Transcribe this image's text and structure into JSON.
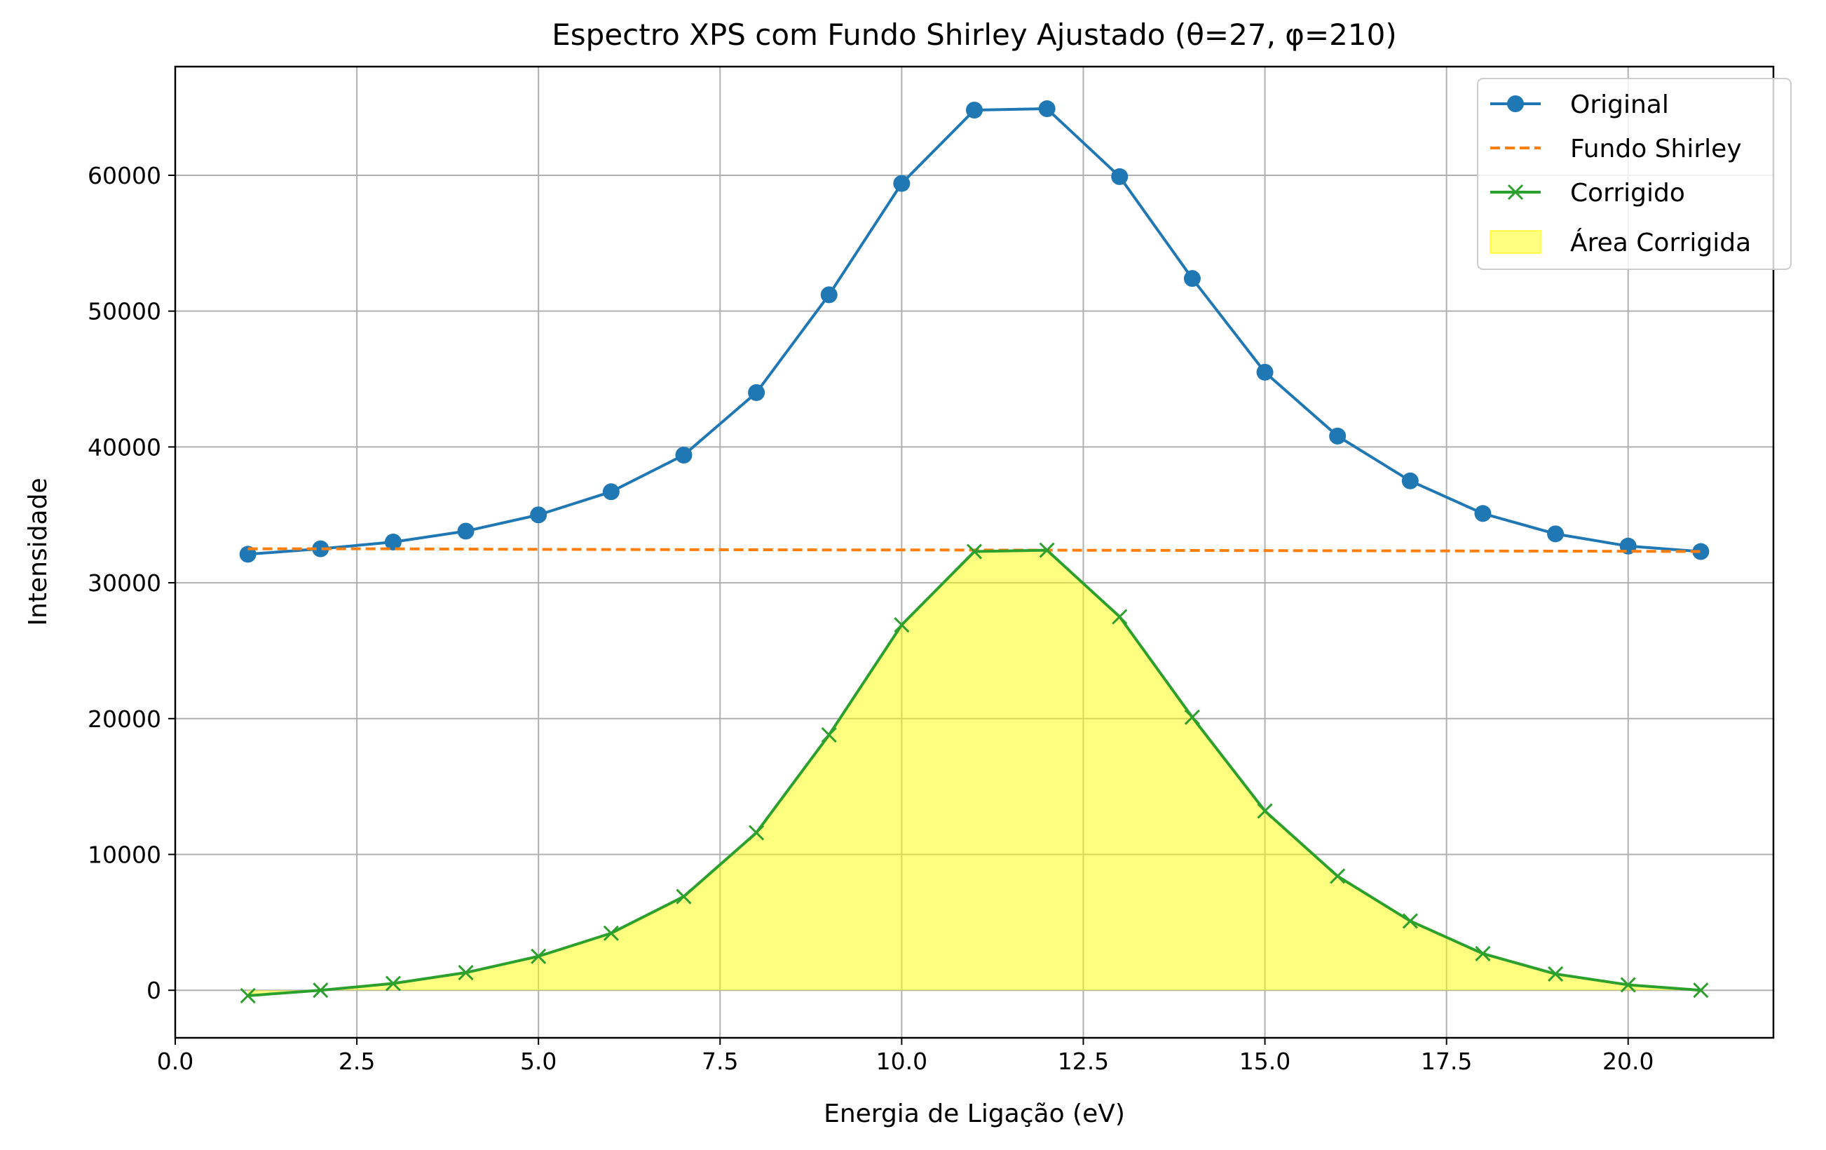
{
  "chart_data": {
    "type": "line",
    "title": "Espectro XPS com Fundo Shirley Ajustado (θ=27, φ=210)",
    "xlabel": "Energia de Ligação (eV)",
    "ylabel": "Intensidade",
    "xlim": [
      0,
      22
    ],
    "ylim": [
      -3500,
      68000
    ],
    "x_ticks": [
      0.0,
      2.5,
      5.0,
      7.5,
      10.0,
      12.5,
      15.0,
      17.5,
      20.0
    ],
    "x_tick_labels": [
      "0.0",
      "2.5",
      "5.0",
      "7.5",
      "10.0",
      "12.5",
      "15.0",
      "17.5",
      "20.0"
    ],
    "y_ticks": [
      0,
      10000,
      20000,
      30000,
      40000,
      50000,
      60000
    ],
    "y_tick_labels": [
      "0",
      "10000",
      "20000",
      "30000",
      "40000",
      "50000",
      "60000"
    ],
    "grid": true,
    "legend_position": "top-right",
    "x": [
      1,
      2,
      3,
      4,
      5,
      6,
      7,
      8,
      9,
      10,
      11,
      12,
      13,
      14,
      15,
      16,
      17,
      18,
      19,
      20,
      21
    ],
    "series": [
      {
        "name": "Original",
        "style": "line-circle",
        "color": "#1f77b4",
        "values": [
          32100,
          32500,
          33000,
          33800,
          35000,
          36700,
          39400,
          44000,
          51200,
          59400,
          64800,
          64900,
          59900,
          52400,
          45500,
          40800,
          37500,
          35100,
          33600,
          32700,
          32300
        ]
      },
      {
        "name": "Fundo Shirley",
        "style": "dashed",
        "color": "#ff7f0e",
        "values": [
          32500,
          32500,
          32500,
          32480,
          32460,
          32450,
          32440,
          32430,
          32420,
          32420,
          32410,
          32400,
          32390,
          32380,
          32370,
          32360,
          32350,
          32340,
          32330,
          32320,
          32300
        ]
      },
      {
        "name": "Corrigido",
        "style": "line-x",
        "color": "#2ca02c",
        "values": [
          -400,
          0,
          500,
          1300,
          2500,
          4200,
          6900,
          11600,
          18800,
          26900,
          32300,
          32400,
          27500,
          20100,
          13200,
          8400,
          5100,
          2700,
          1200,
          400,
          0
        ]
      }
    ],
    "fill": {
      "name": "Área Corrigida",
      "color": "#ffff00",
      "opacity": 0.5,
      "between": [
        "Corrigido",
        0
      ]
    }
  }
}
